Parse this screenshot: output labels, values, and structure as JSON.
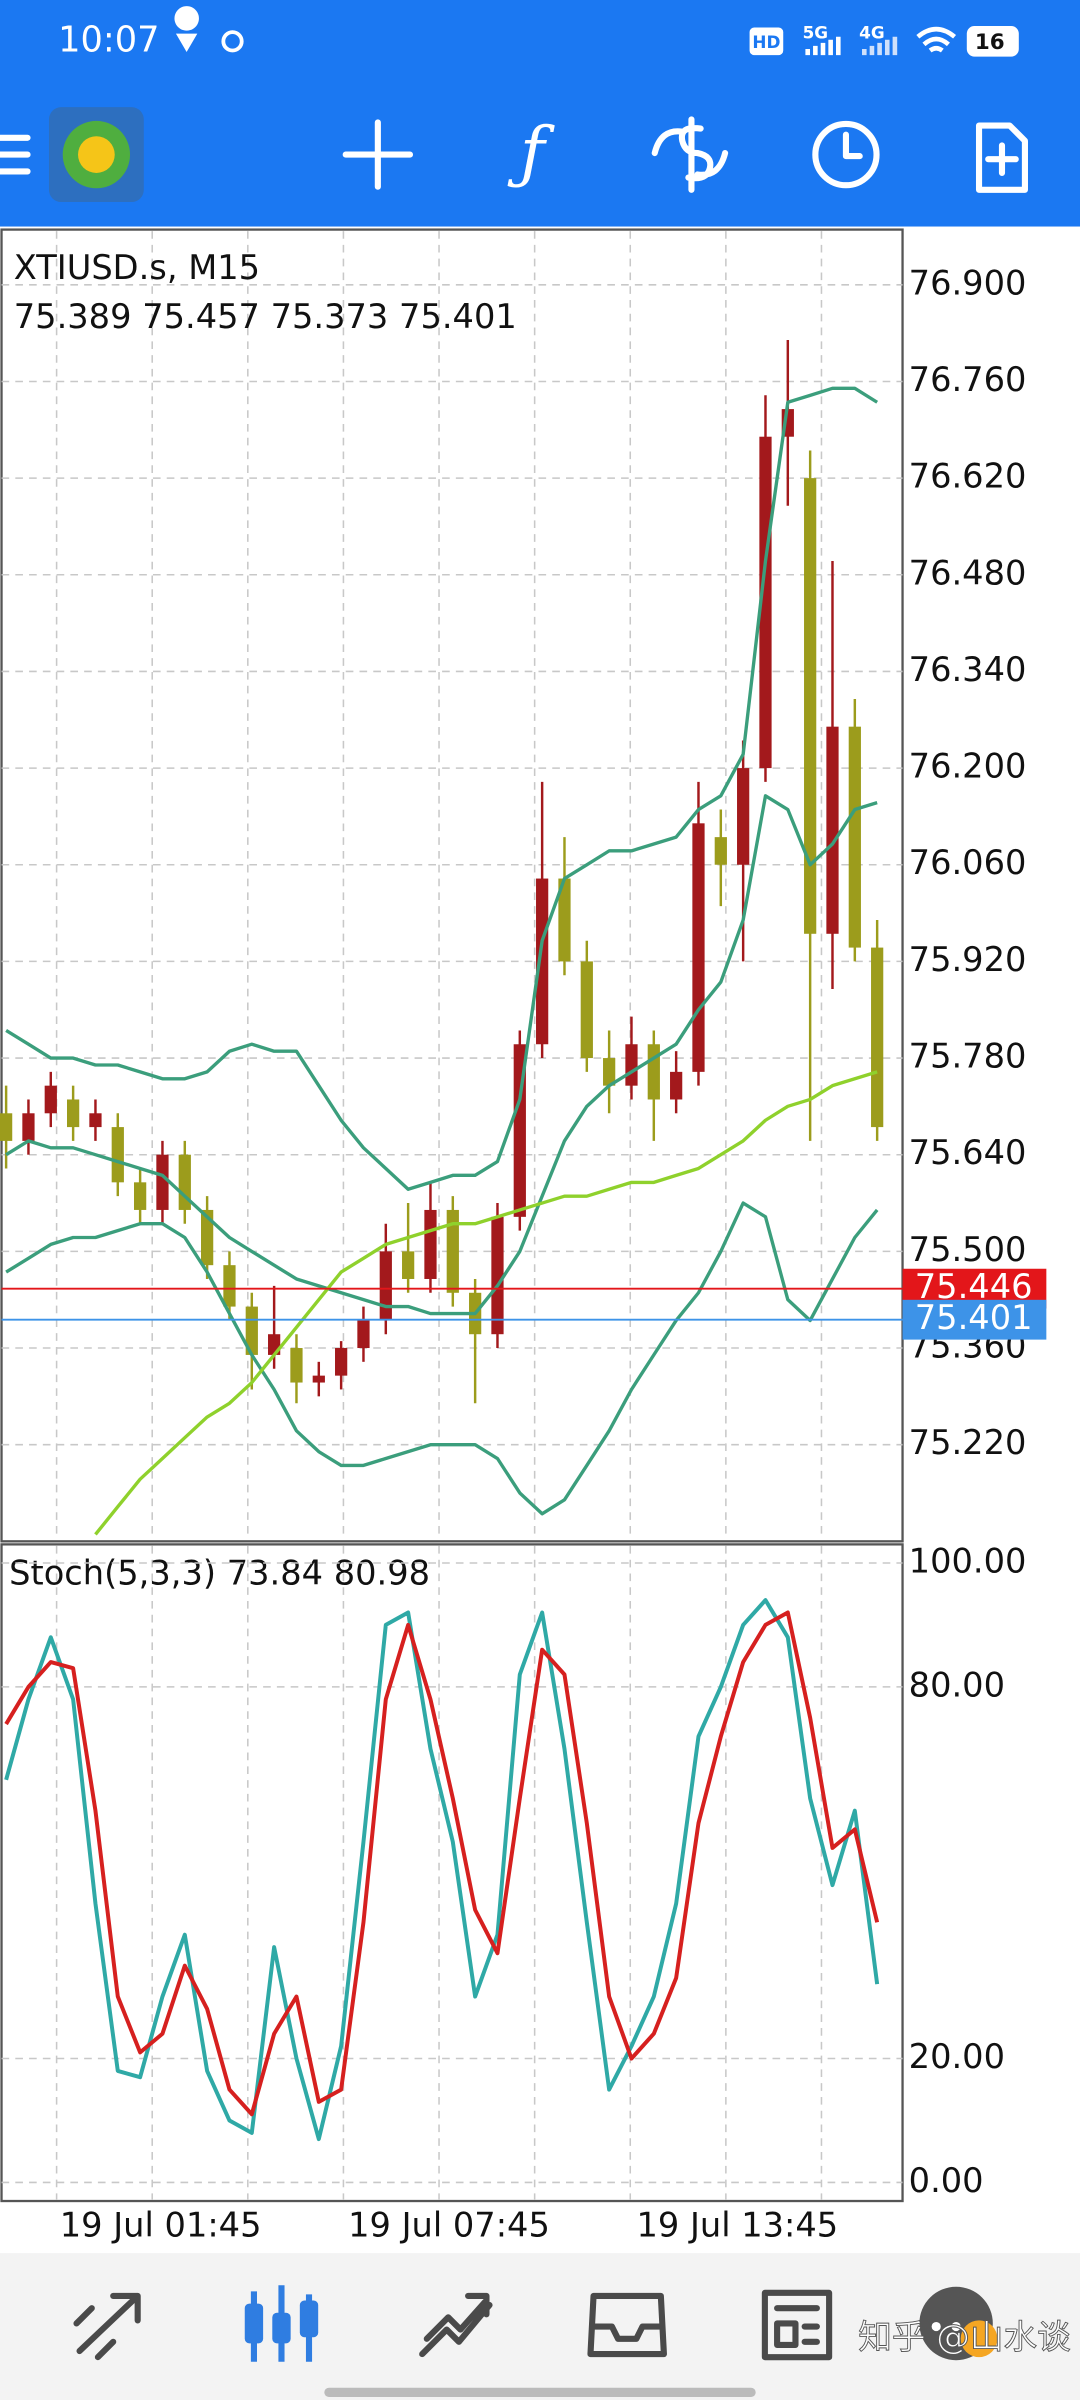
{
  "status_bar": {
    "time": "10:07",
    "network": [
      "HD",
      "5G",
      "4G"
    ],
    "battery": "16"
  },
  "chart_data": [
    {
      "type": "candlestick",
      "title": "XTIUSD.s, M15",
      "subtitle": "75.389 75.457 75.373 75.401",
      "open": [
        75.7,
        75.66,
        75.7,
        75.72,
        75.68,
        75.68,
        75.6,
        75.56,
        75.64,
        75.56,
        75.48,
        75.42,
        75.35,
        75.36,
        75.31,
        75.32,
        75.36,
        75.4,
        75.5,
        75.46,
        75.56,
        75.44,
        75.38,
        75.55,
        75.8,
        76.04,
        75.92,
        75.78,
        75.74,
        75.8,
        75.72,
        75.76,
        76.1,
        76.06,
        76.2,
        76.68,
        76.62,
        75.96,
        76.26,
        75.94
      ],
      "high": [
        75.74,
        75.72,
        75.76,
        75.74,
        75.72,
        75.7,
        75.62,
        75.66,
        75.66,
        75.58,
        75.5,
        75.44,
        75.45,
        75.38,
        75.34,
        75.37,
        75.42,
        75.54,
        75.57,
        75.6,
        75.58,
        75.46,
        75.57,
        75.82,
        76.18,
        76.1,
        75.95,
        75.82,
        75.84,
        75.82,
        75.79,
        76.18,
        76.14,
        76.24,
        76.74,
        76.82,
        76.66,
        76.5,
        76.3,
        75.98
      ],
      "low": [
        75.62,
        75.64,
        75.68,
        75.66,
        75.66,
        75.58,
        75.54,
        75.54,
        75.54,
        75.46,
        75.4,
        75.3,
        75.33,
        75.28,
        75.29,
        75.3,
        75.34,
        75.38,
        75.44,
        75.44,
        75.42,
        75.28,
        75.36,
        75.53,
        75.78,
        75.9,
        75.76,
        75.7,
        75.72,
        75.66,
        75.7,
        75.74,
        76.0,
        75.92,
        76.18,
        76.58,
        75.66,
        75.88,
        75.92,
        75.66
      ],
      "close": [
        75.66,
        75.7,
        75.74,
        75.68,
        75.7,
        75.6,
        75.56,
        75.64,
        75.56,
        75.48,
        75.42,
        75.35,
        75.38,
        75.31,
        75.32,
        75.36,
        75.4,
        75.5,
        75.46,
        75.56,
        75.44,
        75.38,
        75.55,
        75.8,
        76.04,
        75.92,
        75.78,
        75.74,
        75.8,
        75.72,
        75.76,
        76.12,
        76.06,
        76.2,
        76.68,
        76.72,
        75.96,
        76.26,
        75.94,
        75.68
      ],
      "up_color": "#a3191c",
      "down_color": "#9c9c1c",
      "overlays": [
        {
          "color": "#3b9e7c",
          "values": [
            75.82,
            75.8,
            75.78,
            75.78,
            75.77,
            75.77,
            75.76,
            75.75,
            75.75,
            75.76,
            75.79,
            75.8,
            75.79,
            75.79,
            75.74,
            75.69,
            75.65,
            75.62,
            75.59,
            75.6,
            75.61,
            75.61,
            75.63,
            75.72,
            75.95,
            76.04,
            76.06,
            76.08,
            76.08,
            76.09,
            76.1,
            76.14,
            76.16,
            76.22,
            76.5,
            76.73,
            76.74,
            76.75,
            76.75,
            76.73
          ]
        },
        {
          "color": "#3b9e7c",
          "values": [
            75.64,
            75.66,
            75.65,
            75.65,
            75.64,
            75.63,
            75.62,
            75.61,
            75.58,
            75.55,
            75.52,
            75.5,
            75.48,
            75.46,
            75.45,
            75.44,
            75.43,
            75.42,
            75.42,
            75.41,
            75.41,
            75.41,
            75.45,
            75.5,
            75.58,
            75.66,
            75.71,
            75.74,
            75.76,
            75.78,
            75.8,
            75.85,
            75.89,
            75.98,
            76.16,
            76.14,
            76.06,
            76.09,
            76.14,
            76.15
          ]
        },
        {
          "color": "#3b9e7c",
          "values": [
            75.47,
            75.49,
            75.51,
            75.52,
            75.52,
            75.53,
            75.54,
            75.54,
            75.52,
            75.47,
            75.41,
            75.35,
            75.3,
            75.24,
            75.21,
            75.19,
            75.19,
            75.2,
            75.21,
            75.22,
            75.22,
            75.22,
            75.2,
            75.15,
            75.12,
            75.14,
            75.19,
            75.24,
            75.3,
            75.35,
            75.4,
            75.44,
            75.5,
            75.57,
            75.55,
            75.43,
            75.4,
            75.46,
            75.52,
            75.56
          ]
        },
        {
          "color": "#8fd12c",
          "values": [
            null,
            null,
            null,
            null,
            75.09,
            75.13,
            75.17,
            75.2,
            75.23,
            75.26,
            75.28,
            75.31,
            75.35,
            75.39,
            75.43,
            75.47,
            75.49,
            75.51,
            75.52,
            75.53,
            75.54,
            75.54,
            75.55,
            75.56,
            75.57,
            75.58,
            75.58,
            75.59,
            75.6,
            75.6,
            75.61,
            75.62,
            75.64,
            75.66,
            75.69,
            75.71,
            75.72,
            75.74,
            75.75,
            75.76
          ]
        }
      ],
      "price_lines": [
        {
          "value": 75.446,
          "color": "#e3161a"
        },
        {
          "value": 75.401,
          "color": "#3d93e8"
        }
      ],
      "ylim": [
        75.08,
        76.98
      ],
      "yticks": [
        {
          "value": 76.9,
          "label": "76.900"
        },
        {
          "value": 76.76,
          "label": "76.760"
        },
        {
          "value": 76.62,
          "label": "76.620"
        },
        {
          "value": 76.48,
          "label": "76.480"
        },
        {
          "value": 76.34,
          "label": "76.340"
        },
        {
          "value": 76.2,
          "label": "76.200"
        },
        {
          "value": 76.06,
          "label": "76.060"
        },
        {
          "value": 75.92,
          "label": "75.920"
        },
        {
          "value": 75.78,
          "label": "75.780"
        },
        {
          "value": 75.64,
          "label": "75.640"
        },
        {
          "value": 75.5,
          "label": "75.500"
        },
        {
          "value": 75.36,
          "label": "75.360"
        },
        {
          "value": 75.22,
          "label": "75.220"
        }
      ],
      "grid": true
    },
    {
      "type": "line",
      "title": "Stoch(5,3,3) 73.84 80.98",
      "series": [
        {
          "color": "#2fa9a6",
          "values": [
            65,
            78,
            88,
            78,
            45,
            18,
            17,
            30,
            40,
            18,
            10,
            8,
            38,
            20,
            7,
            22,
            55,
            90,
            92,
            70,
            55,
            30,
            40,
            82,
            92,
            70,
            42,
            15,
            22,
            30,
            45,
            72,
            80,
            90,
            94,
            88,
            62,
            48,
            60,
            32
          ]
        },
        {
          "color": "#d6201f",
          "values": [
            74,
            80,
            84,
            83,
            60,
            30,
            21,
            24,
            35,
            28,
            15,
            11,
            24,
            30,
            13,
            15,
            42,
            78,
            90,
            78,
            62,
            44,
            37,
            62,
            86,
            82,
            58,
            30,
            20,
            24,
            33,
            58,
            72,
            84,
            90,
            92,
            75,
            54,
            57,
            42
          ]
        }
      ],
      "ylim": [
        -3,
        103
      ],
      "yticks": [
        {
          "value": 100,
          "label": "100.00"
        },
        {
          "value": 80,
          "label": "80.00"
        },
        {
          "value": 20,
          "label": "20.00"
        },
        {
          "value": 0,
          "label": "0.00"
        }
      ],
      "time_labels": [
        "19 Jul 01:45",
        "19 Jul 07:45",
        "19 Jul 13:45"
      ],
      "grid": true
    }
  ],
  "watermark": "知乎 @山水谈"
}
